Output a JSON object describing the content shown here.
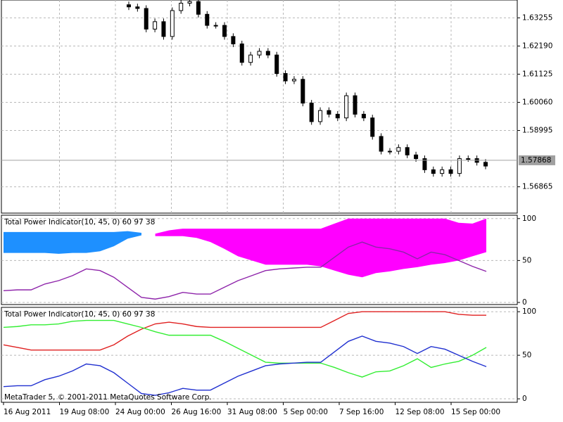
{
  "chart_data": [
    {
      "type": "candlestick",
      "open": [
        1.6375,
        1.6367,
        1.6361,
        1.6283,
        1.6311,
        1.6255,
        1.6353,
        1.6381,
        1.6387,
        1.6339,
        1.6297,
        1.6297,
        1.6255,
        1.6227,
        1.6157,
        1.6185,
        1.6199,
        1.6185,
        1.6115,
        1.6087,
        1.6093,
        1.6003,
        1.5933,
        1.5975,
        1.5961,
        1.5947,
        1.6031,
        1.5961,
        1.5947,
        1.5877,
        1.5821,
        1.5821,
        1.5835,
        1.5807,
        1.5793,
        1.5751,
        1.5737,
        1.5751,
        1.5737,
        1.5793,
        1.5793,
        1.5779
      ],
      "high": [
        1.6387,
        1.6379,
        1.6373,
        1.6323,
        1.6323,
        1.6365,
        1.6393,
        1.6399,
        1.6399,
        1.6351,
        1.6309,
        1.6309,
        1.6267,
        1.6239,
        1.6197,
        1.6211,
        1.6211,
        1.6197,
        1.6127,
        1.6105,
        1.6105,
        1.6015,
        1.5987,
        1.5987,
        1.5973,
        1.6043,
        1.6043,
        1.5973,
        1.5959,
        1.5889,
        1.5833,
        1.5847,
        1.5847,
        1.5819,
        1.5805,
        1.5763,
        1.5763,
        1.5763,
        1.5805,
        1.5805,
        1.5805,
        1.5791
      ],
      "low": [
        1.6355,
        1.6349,
        1.6271,
        1.6271,
        1.6243,
        1.6243,
        1.6341,
        1.6369,
        1.6327,
        1.6285,
        1.6285,
        1.6243,
        1.6215,
        1.6145,
        1.6145,
        1.6173,
        1.6173,
        1.6103,
        1.6075,
        1.6075,
        1.5991,
        1.5921,
        1.5921,
        1.5949,
        1.5935,
        1.5935,
        1.5949,
        1.5935,
        1.5865,
        1.5809,
        1.5809,
        1.5809,
        1.5795,
        1.5781,
        1.5739,
        1.5725,
        1.5725,
        1.5725,
        1.5725,
        1.5781,
        1.5767,
        1.5753
      ],
      "close": [
        1.6367,
        1.6361,
        1.6283,
        1.6311,
        1.6255,
        1.6353,
        1.6381,
        1.6387,
        1.6339,
        1.6297,
        1.6297,
        1.6255,
        1.6227,
        1.6157,
        1.6185,
        1.6199,
        1.6185,
        1.6115,
        1.6087,
        1.6093,
        1.6003,
        1.5933,
        1.5975,
        1.5961,
        1.5947,
        1.6031,
        1.5961,
        1.5947,
        1.5877,
        1.5821,
        1.5821,
        1.5835,
        1.5807,
        1.5793,
        1.5751,
        1.5737,
        1.5751,
        1.5737,
        1.5793,
        1.5793,
        1.5779,
        1.5765
      ],
      "up_color": "#ffffff",
      "down_color": "#000000",
      "ylim": [
        1.5587,
        1.6393
      ],
      "yticks": [
        1.63255,
        {
          "value": 1.6219,
          "label": "1.62190"
        },
        1.61125,
        {
          "value": 1.6006,
          "label": "1.60060"
        },
        1.58995,
        1.56865
      ],
      "last_price": 1.57868,
      "grid": true
    },
    {
      "type": "band",
      "title": "Total Power Indicator(10, 45, 0) 60 97 38",
      "bands": [
        {
          "color": "#1e90ff",
          "upper": [
            84,
            84,
            84,
            84,
            84,
            84,
            84,
            84,
            84,
            85,
            83,
            null,
            null,
            null,
            null,
            null,
            null,
            null,
            null,
            null,
            null,
            null,
            null,
            null,
            null,
            null,
            null,
            null,
            null,
            null,
            null,
            null,
            null,
            null,
            null,
            null
          ],
          "lower": [
            59,
            59,
            59,
            59,
            58,
            59,
            59,
            61,
            67,
            76,
            80,
            null,
            null,
            null,
            null,
            null,
            null,
            null,
            null,
            null,
            null,
            null,
            null,
            null,
            null,
            null,
            null,
            null,
            null,
            null,
            null,
            null,
            null,
            null,
            null,
            null
          ]
        },
        {
          "color": "#ff00ff",
          "upper": [
            null,
            null,
            null,
            null,
            null,
            null,
            null,
            null,
            null,
            null,
            null,
            82,
            86,
            88,
            88,
            88,
            88,
            88,
            88,
            88,
            88,
            88,
            88,
            88,
            94,
            100,
            100,
            100,
            100,
            100,
            100,
            100,
            100,
            95,
            94,
            100
          ],
          "lower": [
            null,
            null,
            null,
            null,
            null,
            null,
            null,
            null,
            null,
            null,
            null,
            79,
            79,
            79,
            77,
            72,
            64,
            55,
            50,
            45,
            45,
            45,
            45,
            43,
            38,
            33,
            30,
            35,
            37,
            40,
            42,
            45,
            47,
            50,
            55,
            60
          ]
        }
      ],
      "series": [
        {
          "color": "#8e24aa",
          "values": [
            14,
            15,
            15,
            22,
            26,
            32,
            40,
            38,
            30,
            18,
            6,
            4,
            7,
            12,
            10,
            10,
            18,
            26,
            32,
            38,
            40,
            41,
            42,
            42,
            54,
            66,
            72,
            66,
            64,
            60,
            52,
            60,
            57,
            50,
            43,
            37
          ]
        }
      ],
      "ylim": [
        -2.5,
        104
      ],
      "yticks": [
        0,
        50,
        100
      ],
      "grid": true
    },
    {
      "type": "line",
      "title": "Total Power Indicator(10, 45, 0) 60 97 38",
      "annotation": "MetaTrader 5, © 2001-2011 MetaQuotes Software Corp.",
      "series": [
        {
          "color": "#e02020",
          "values": [
            62,
            59,
            56,
            56,
            56,
            56,
            56,
            56,
            62,
            72,
            80,
            86,
            88,
            86,
            83,
            82,
            82,
            82,
            82,
            82,
            82,
            82,
            82,
            82,
            90,
            98,
            100,
            100,
            100,
            100,
            100,
            100,
            100,
            97,
            96,
            96
          ]
        },
        {
          "color": "#33ee33",
          "values": [
            82,
            83,
            85,
            85,
            86,
            89,
            90,
            90,
            90,
            86,
            82,
            77,
            73,
            73,
            73,
            73,
            66,
            58,
            50,
            42,
            41,
            41,
            41,
            41,
            36,
            30,
            25,
            31,
            32,
            38,
            46,
            36,
            40,
            43,
            50,
            59
          ]
        },
        {
          "color": "#2030d0",
          "values": [
            14,
            15,
            15,
            22,
            26,
            32,
            40,
            38,
            30,
            18,
            6,
            4,
            7,
            12,
            10,
            10,
            18,
            26,
            32,
            38,
            40,
            41,
            42,
            42,
            54,
            66,
            72,
            66,
            64,
            60,
            52,
            60,
            57,
            50,
            43,
            37
          ]
        }
      ],
      "ylim": [
        -4,
        105
      ],
      "yticks": [
        0,
        50,
        100
      ],
      "grid": true,
      "xtick_labels": [
        "16 Aug 2011",
        "19 Aug 08:00",
        "24 Aug 00:00",
        "26 Aug 16:00",
        "31 Aug 08:00",
        "5 Sep 00:00",
        "7 Sep 16:00",
        "12 Sep 08:00",
        "15 Sep 00:00"
      ]
    }
  ]
}
